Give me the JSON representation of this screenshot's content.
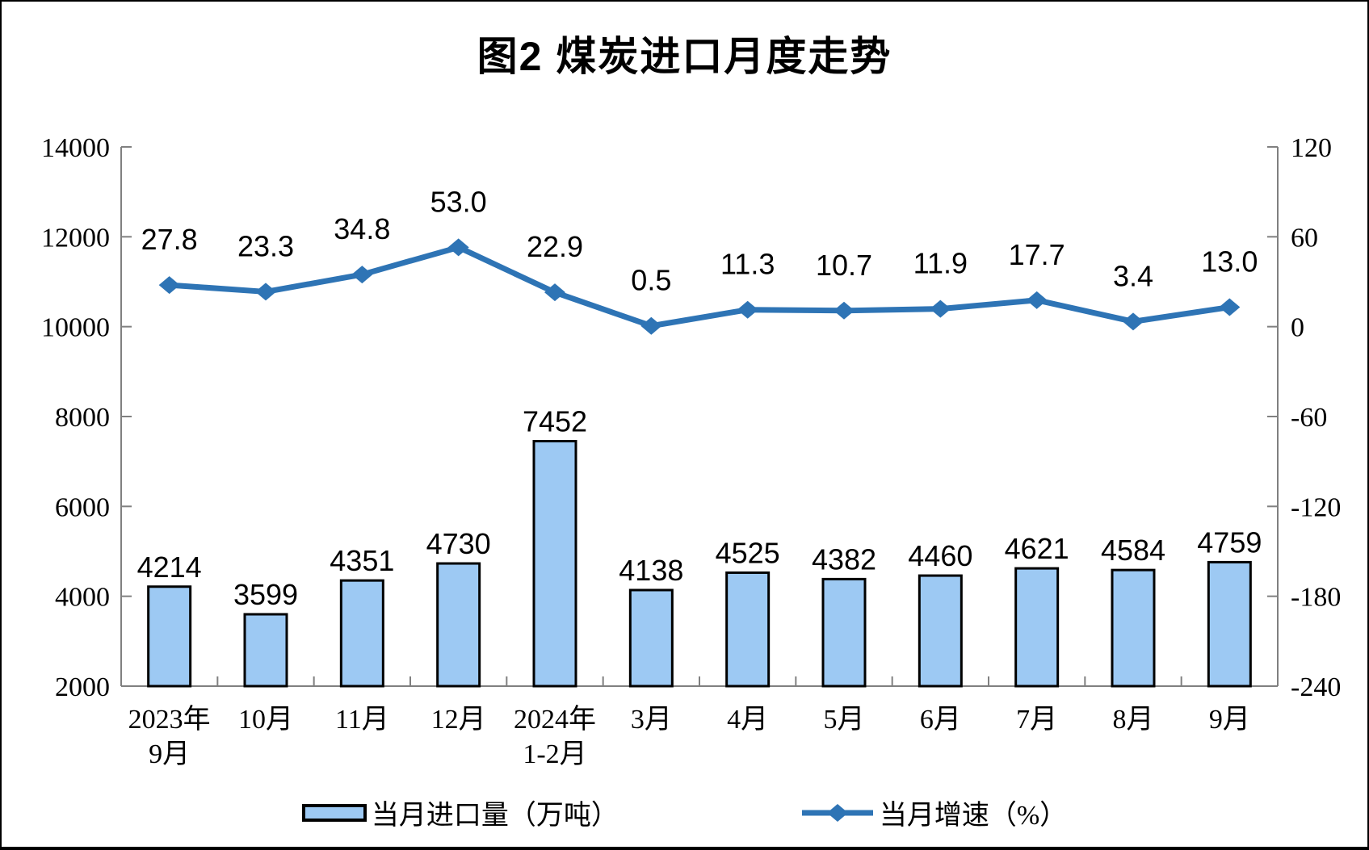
{
  "chart_data": {
    "type": "bar+line combo",
    "title": "图2 煤炭进口月度走势",
    "categories": [
      [
        "2023年",
        "9月"
      ],
      [
        "10月"
      ],
      [
        "11月"
      ],
      [
        "12月"
      ],
      [
        "2024年",
        "1-2月"
      ],
      [
        "3月"
      ],
      [
        "4月"
      ],
      [
        "5月"
      ],
      [
        "6月"
      ],
      [
        "7月"
      ],
      [
        "8月"
      ],
      [
        "9月"
      ]
    ],
    "series": [
      {
        "name": "当月进口量（万吨）",
        "type": "bar",
        "axis": "left",
        "values": [
          4214,
          3599,
          4351,
          4730,
          7452,
          4138,
          4525,
          4382,
          4460,
          4621,
          4584,
          4759
        ],
        "labels": [
          "4214",
          "3599",
          "4351",
          "4730",
          "7452",
          "4138",
          "4525",
          "4382",
          "4460",
          "4621",
          "4584",
          "4759"
        ],
        "fill_color": "#9DC9F3",
        "border_color": "#000000"
      },
      {
        "name": "当月增速（%）",
        "type": "line",
        "axis": "right",
        "values": [
          27.8,
          23.3,
          34.8,
          53.0,
          22.9,
          0.5,
          11.3,
          10.7,
          11.9,
          17.7,
          3.4,
          13.0
        ],
        "labels": [
          "27.8",
          "23.3",
          "34.8",
          "53.0",
          "22.9",
          "0.5",
          "11.3",
          "10.7",
          "11.9",
          "17.7",
          "3.4",
          "13.0"
        ],
        "color": "#2E74B5",
        "marker": "diamond"
      }
    ],
    "left_axis": {
      "min": 2000,
      "max": 14000,
      "step": 2000,
      "tick_labels_top_to_bottom": [
        "14000",
        "12000",
        "10000",
        "8000",
        "6000",
        "4000",
        "2000"
      ]
    },
    "right_axis": {
      "min": -240,
      "max": 120,
      "step": 60,
      "tick_labels_top_to_bottom": [
        "120",
        "60",
        "0",
        "-60",
        "-120",
        "-180",
        "-240"
      ]
    },
    "grid": false,
    "legend_position": "bottom",
    "axis_line_color": "#808080",
    "background_color": "#FFFFFF"
  }
}
